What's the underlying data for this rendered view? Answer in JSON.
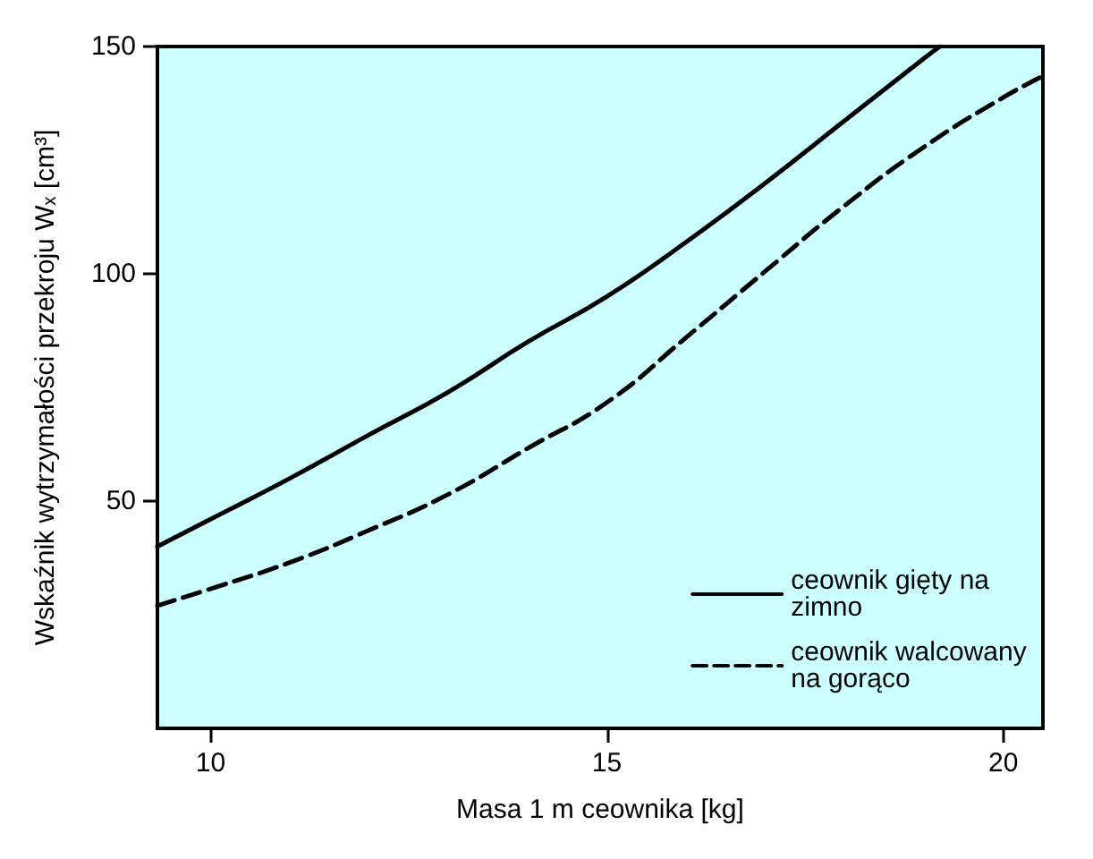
{
  "chart_data": {
    "type": "line",
    "xlabel": "Masa 1 m ceownika [kg]",
    "ylabel": "Wskaźnik wytrzymałości przekroju Wₓ [cm³]",
    "xlim": [
      9.33,
      20.5
    ],
    "ylim": [
      0,
      150
    ],
    "xticks": [
      10,
      15,
      20
    ],
    "yticks": [
      50,
      100,
      150
    ],
    "grid": false,
    "legend": "bottom right",
    "marker": "none",
    "series": [
      {
        "name": "ceownik gięty na zimno",
        "color": "#000000",
        "line_style": "solid",
        "x": [
          9.33,
          10,
          11,
          12,
          13,
          14,
          15,
          16,
          17,
          18,
          19,
          19.2
        ],
        "values": [
          40,
          46,
          55,
          64.6,
          74,
          85,
          95,
          107,
          120,
          133.7,
          147.4,
          150
        ]
      },
      {
        "name": "ceownik walcowany na gorąco",
        "color": "#000000",
        "line_style": "dashed",
        "x": [
          9.33,
          10,
          11,
          12,
          13,
          14,
          15,
          16,
          17,
          18,
          19,
          20,
          20.5
        ],
        "values": [
          27,
          30.7,
          36.5,
          43.6,
          51.5,
          61.6,
          71.7,
          86,
          100.6,
          115,
          127.9,
          138.8,
          143.5
        ]
      }
    ]
  }
}
